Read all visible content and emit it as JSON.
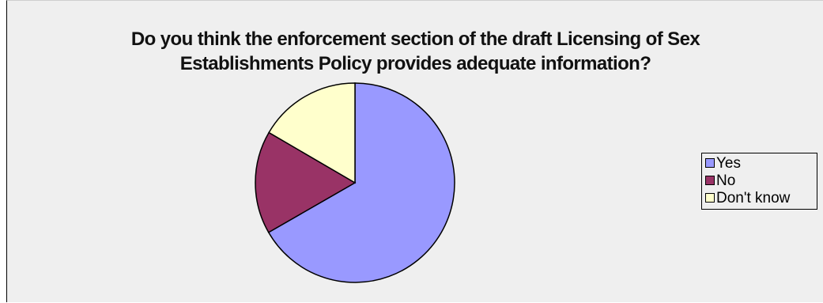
{
  "chart_data": {
    "type": "pie",
    "title": [
      "Do you think the enforcement section of the draft Licensing of Sex",
      "Establishments Policy provides adequate information?"
    ],
    "categories": [
      "Yes",
      "No",
      "Don't know"
    ],
    "values": [
      66.7,
      16.7,
      16.6
    ],
    "colors": [
      "#9999ff",
      "#993366",
      "#ffffcc"
    ],
    "legend_position": "right"
  }
}
